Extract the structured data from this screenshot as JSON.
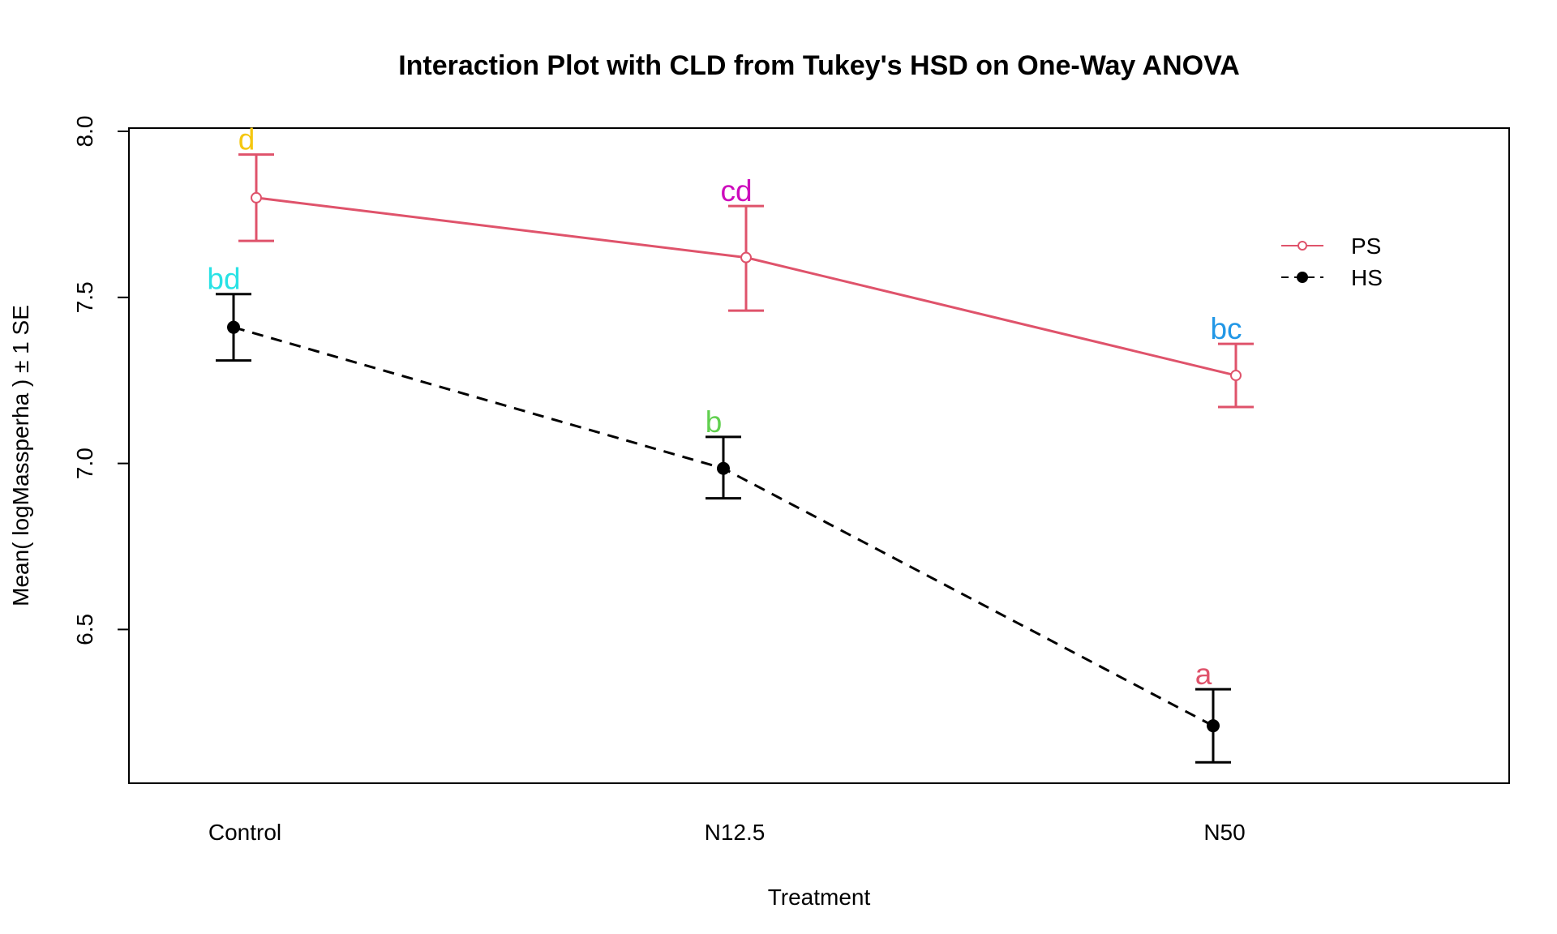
{
  "chart_data": {
    "type": "line",
    "title": "Interaction Plot with CLD from Tukey's HSD on One-Way ANOVA",
    "xlabel": "Treatment",
    "ylabel": "Mean( logMassperha ) ± 1 SE",
    "categories": [
      "Control",
      "N12.5",
      "N50"
    ],
    "yticks": [
      "6.5",
      "7.0",
      "7.5",
      "8.0"
    ],
    "ylim": [
      6.03,
      8.0
    ],
    "series": [
      {
        "name": "PS",
        "color": "#DF536B",
        "line_style": "solid",
        "marker": "open-circle",
        "means": [
          7.8,
          7.62,
          7.265
        ],
        "lower": [
          7.67,
          7.46,
          7.17
        ],
        "upper": [
          7.93,
          7.775,
          7.36
        ],
        "cld": [
          "d",
          "cd",
          "bc"
        ],
        "cld_colors": [
          "#F5C710",
          "#CD0BBC",
          "#2297E6"
        ]
      },
      {
        "name": "HS",
        "color": "#000000",
        "line_style": "dashed",
        "marker": "filled-circle",
        "means": [
          7.41,
          6.985,
          6.21
        ],
        "lower": [
          7.31,
          6.895,
          6.1
        ],
        "upper": [
          7.51,
          7.08,
          6.32
        ],
        "cld": [
          "bd",
          "b",
          "a"
        ],
        "cld_colors": [
          "#28E2E5",
          "#61D04F",
          "#DF536B"
        ]
      }
    ],
    "legend_position": "right"
  }
}
